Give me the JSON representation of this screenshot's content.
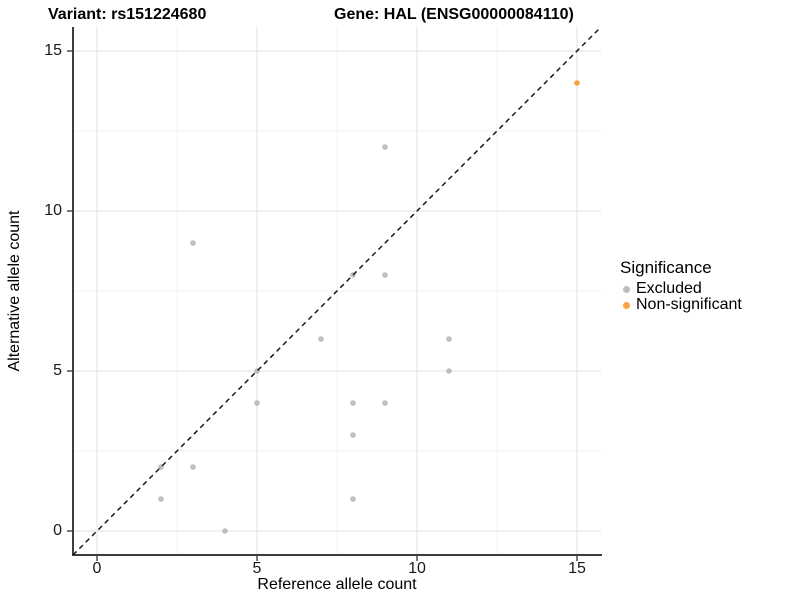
{
  "titles": {
    "variant": "Variant: rs151224680",
    "gene": "Gene: HAL (ENSG00000084110)"
  },
  "chart_data": {
    "type": "scatter",
    "xlabel": "Reference allele count",
    "ylabel": "Alternative allele count",
    "xlim": [
      -0.75,
      15.75
    ],
    "ylim": [
      -0.75,
      15.75
    ],
    "xticks": [
      0,
      5,
      10,
      15
    ],
    "yticks": [
      0,
      5,
      10,
      15
    ],
    "minor_ticks": [
      2.5,
      7.5,
      12.5
    ],
    "grid": true,
    "reference_line": {
      "kind": "identity-diagonal",
      "style": "dashed",
      "color": "#1a1a1a"
    },
    "series": [
      {
        "name": "Excluded",
        "color": "#BDBDBD",
        "points": [
          [
            2,
            1
          ],
          [
            2,
            2
          ],
          [
            3,
            2
          ],
          [
            3,
            9
          ],
          [
            4,
            0
          ],
          [
            5,
            4
          ],
          [
            5,
            5
          ],
          [
            7,
            6
          ],
          [
            8,
            1
          ],
          [
            8,
            3
          ],
          [
            8,
            4
          ],
          [
            8,
            8
          ],
          [
            9,
            4
          ],
          [
            9,
            8
          ],
          [
            9,
            12
          ],
          [
            11,
            5
          ],
          [
            11,
            6
          ]
        ]
      },
      {
        "name": "Non-significant",
        "color": "#F9A242",
        "points": [
          [
            15,
            14
          ]
        ]
      }
    ],
    "legend": {
      "title": "Significance",
      "position": "right",
      "entries": [
        {
          "label": "Excluded",
          "color": "#BDBDBD"
        },
        {
          "label": "Non-significant",
          "color": "#F9A242"
        }
      ]
    },
    "colors": {
      "grid_major": "#E5E5E5",
      "grid_minor": "#F2F2F2",
      "axis_line": "#3d3d3d",
      "tick_mark": "#4d4d4d"
    }
  }
}
